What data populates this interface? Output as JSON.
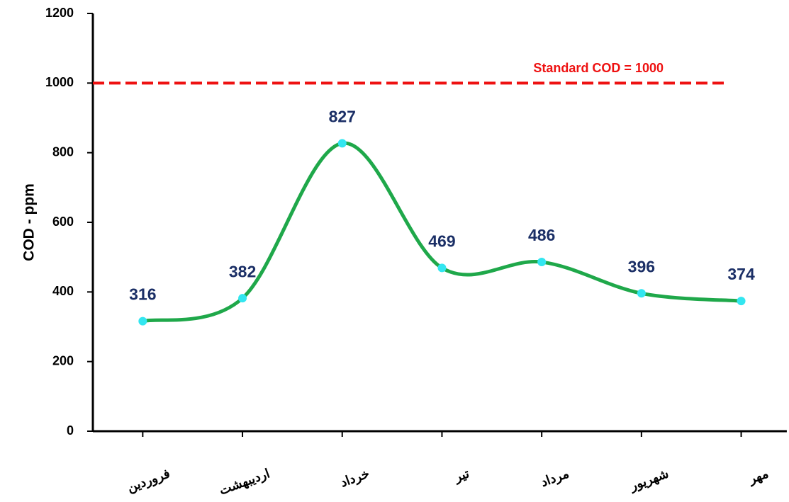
{
  "chart_data": {
    "type": "line",
    "y_label": "COD   -   ppm",
    "categories": [
      "فروردین",
      "اردیبهشت",
      "خرداد",
      "تیر",
      "مرداد",
      "شهریور",
      "مهر"
    ],
    "series": [
      {
        "name": "COD",
        "color": "#1fa84a",
        "marker_color": "#33e6f0",
        "values": [
          316,
          382,
          827,
          469,
          486,
          396,
          374
        ]
      }
    ],
    "ylim": [
      0,
      1200
    ],
    "yticks": [
      0,
      200,
      400,
      600,
      800,
      1000,
      1200
    ],
    "reference": {
      "value": 1000,
      "label": "Standard  COD = 1000",
      "color": "#ee1111"
    }
  }
}
